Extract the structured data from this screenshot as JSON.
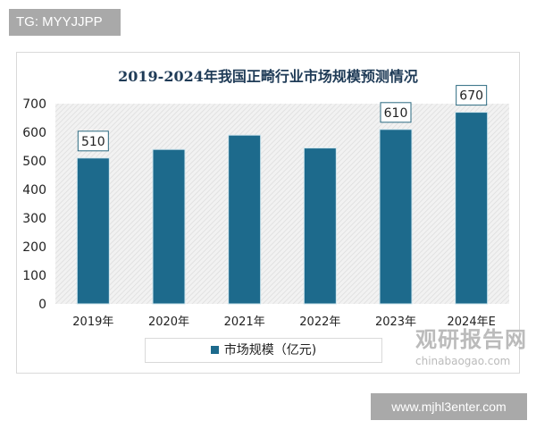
{
  "tag_label": "TG: MYYJJPP",
  "site_label": "www.mjhl3enter.com",
  "watermark": {
    "cn": "观研报告网",
    "en": "chinabaogao.com"
  },
  "chart_data": {
    "type": "bar",
    "title": "2019-2024年我国正畸行业市场规模预测情况",
    "categories": [
      "2019年",
      "2020年",
      "2021年",
      "2022年",
      "2023年",
      "2024年E"
    ],
    "series": [
      {
        "name": "市场规模（亿元)",
        "values": [
          510,
          540,
          590,
          545,
          610,
          670
        ],
        "color": "#1d6a8c"
      }
    ],
    "data_labels": {
      "2019年": "510",
      "2023年": "610",
      "2024年E": "670"
    },
    "ylim": [
      0,
      700
    ],
    "yticks": [
      0,
      100,
      200,
      300,
      400,
      500,
      600,
      700
    ],
    "xlabel": "",
    "ylabel": "",
    "legend": "bottom",
    "grid": false,
    "plot_background": "hatched light gray"
  }
}
